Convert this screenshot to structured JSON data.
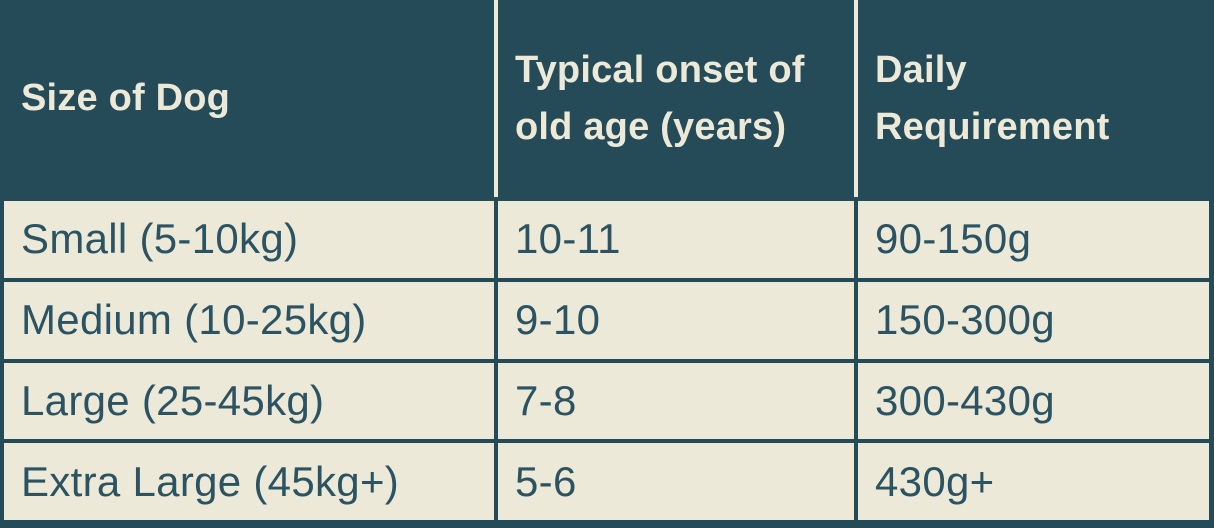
{
  "colors": {
    "teal": "#254b58",
    "cream": "#ede9d9",
    "ink": "#2b5362"
  },
  "chart_data": {
    "type": "table",
    "columns": [
      "Size of Dog",
      "Typical onset of old age (years)",
      "Daily Requirement"
    ],
    "rows": [
      [
        "Small (5-10kg)",
        "10-11",
        "90-150g"
      ],
      [
        "Medium (10-25kg)",
        "9-10",
        "150-300g"
      ],
      [
        "Large (25-45kg)",
        "7-8",
        "300-430g"
      ],
      [
        "Extra Large (45kg+)",
        "5-6",
        "430g+"
      ]
    ]
  }
}
